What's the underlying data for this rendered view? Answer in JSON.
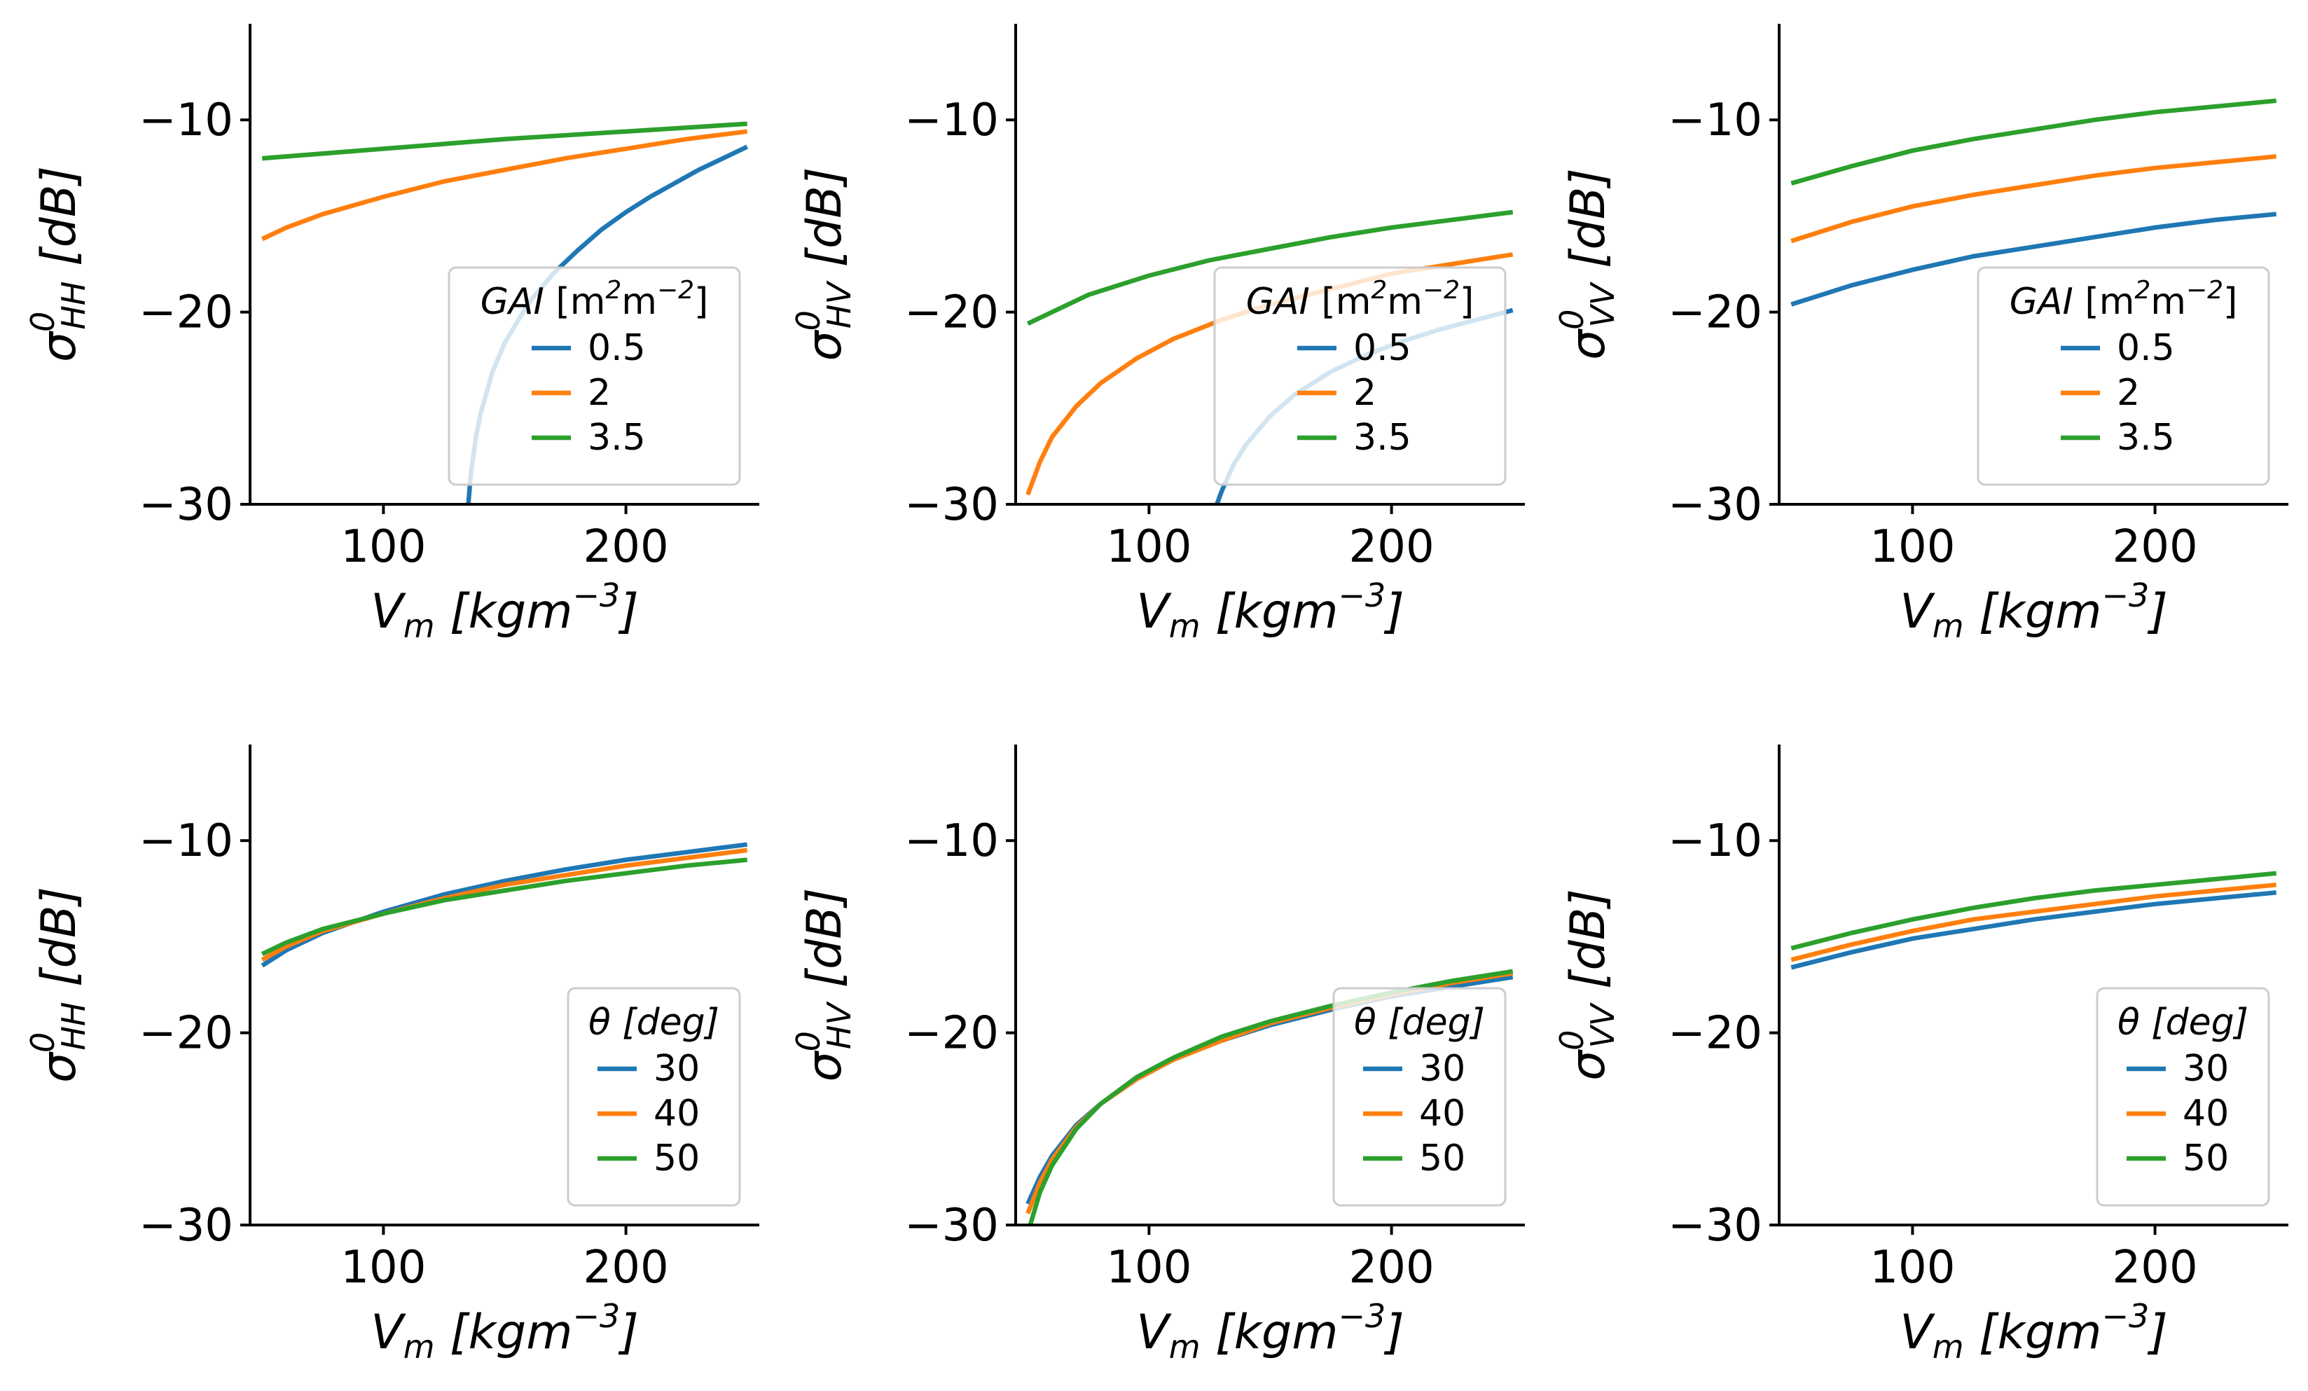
{
  "colors": {
    "blue": "#1f77b4",
    "orange": "#ff7f0e",
    "green": "#2ca02c"
  },
  "chart_data": [
    {
      "type": "line",
      "ylabel": "σ⁰HH [dB]",
      "ylabel_main": "σ",
      "ylabel_sup": "0",
      "ylabel_sub": "HH",
      "ylabel_unit": " [dB]",
      "xlabel": "Vm [kgm−3]",
      "xlabel_main": "V",
      "xlabel_sub": "m",
      "xlabel_unit": " [kgm",
      "xlabel_sup": "−3",
      "xlabel_end": "]",
      "xlim": [
        45,
        255
      ],
      "ylim": [
        -30,
        -5
      ],
      "xticks": [
        100,
        200
      ],
      "xtick_labels": [
        "100",
        "200"
      ],
      "yticks": [
        -10,
        -20,
        -30
      ],
      "ytick_labels": [
        "−10",
        "−20",
        "−30"
      ],
      "legend": {
        "title": "GAI [m²m⁻²]",
        "title_main": "GAI ",
        "title_rest": "[m",
        "title_sup1": "2",
        "title_mid": "m",
        "title_sup2": "−2",
        "title_end": "]",
        "placement": "lower right"
      },
      "series": [
        {
          "name": "0.5",
          "color": "#1f77b4",
          "x": [
            135,
            136,
            138,
            140,
            145,
            150,
            160,
            170,
            180,
            190,
            200,
            210,
            220,
            230,
            240,
            250
          ],
          "y": [
            -30.0,
            -28.5,
            -26.6,
            -25.3,
            -23.1,
            -21.6,
            -19.5,
            -18.0,
            -16.8,
            -15.7,
            -14.8,
            -14.0,
            -13.3,
            -12.6,
            -12.0,
            -11.4
          ]
        },
        {
          "name": "2",
          "color": "#ff7f0e",
          "x": [
            50,
            60,
            75,
            100,
            125,
            150,
            175,
            200,
            225,
            250
          ],
          "y": [
            -16.2,
            -15.6,
            -14.9,
            -14.0,
            -13.2,
            -12.6,
            -12.0,
            -11.5,
            -11.0,
            -10.6
          ]
        },
        {
          "name": "3.5",
          "color": "#2ca02c",
          "x": [
            50,
            100,
            150,
            200,
            250
          ],
          "y": [
            -12.0,
            -11.5,
            -11.0,
            -10.6,
            -10.2
          ]
        }
      ]
    },
    {
      "type": "line",
      "ylabel": "σ⁰HV [dB]",
      "ylabel_main": "σ",
      "ylabel_sup": "0",
      "ylabel_sub": "HV",
      "ylabel_unit": " [dB]",
      "xlabel": "Vm [kgm−3]",
      "xlabel_main": "V",
      "xlabel_sub": "m",
      "xlabel_unit": " [kgm",
      "xlabel_sup": "−3",
      "xlabel_end": "]",
      "xlim": [
        45,
        255
      ],
      "ylim": [
        -30,
        -5
      ],
      "xticks": [
        100,
        200
      ],
      "xtick_labels": [
        "100",
        "200"
      ],
      "yticks": [
        -10,
        -20,
        -30
      ],
      "ytick_labels": [
        "−10",
        "−20",
        "−30"
      ],
      "legend": {
        "title": "GAI [m²m⁻²]",
        "title_main": "GAI ",
        "title_rest": "[m",
        "title_sup1": "2",
        "title_mid": "m",
        "title_sup2": "−2",
        "title_end": "]",
        "placement": "lower right"
      },
      "series": [
        {
          "name": "0.5",
          "color": "#1f77b4",
          "x": [
            128,
            130,
            135,
            140,
            150,
            160,
            175,
            190,
            205,
            220,
            235,
            250
          ],
          "y": [
            -30.0,
            -29.3,
            -27.9,
            -26.9,
            -25.4,
            -24.3,
            -23.1,
            -22.2,
            -21.5,
            -20.9,
            -20.4,
            -19.9
          ]
        },
        {
          "name": "2",
          "color": "#ff7f0e",
          "x": [
            50,
            55,
            60,
            70,
            80,
            95,
            110,
            130,
            150,
            175,
            200,
            225,
            250
          ],
          "y": [
            -29.5,
            -27.8,
            -26.5,
            -24.9,
            -23.7,
            -22.4,
            -21.4,
            -20.4,
            -19.6,
            -18.8,
            -18.0,
            -17.5,
            -17.0
          ]
        },
        {
          "name": "3.5",
          "color": "#2ca02c",
          "x": [
            50,
            75,
            100,
            125,
            150,
            175,
            200,
            225,
            250
          ],
          "y": [
            -20.6,
            -19.1,
            -18.1,
            -17.3,
            -16.7,
            -16.1,
            -15.6,
            -15.2,
            -14.8
          ]
        }
      ]
    },
    {
      "type": "line",
      "ylabel": "σ⁰VV [dB]",
      "ylabel_main": "σ",
      "ylabel_sup": "0",
      "ylabel_sub": "VV",
      "ylabel_unit": " [dB]",
      "xlabel": "Vm [kgm−3]",
      "xlabel_main": "V",
      "xlabel_sub": "m",
      "xlabel_unit": " [kgm",
      "xlabel_sup": "−3",
      "xlabel_end": "]",
      "xlim": [
        45,
        255
      ],
      "ylim": [
        -30,
        -5
      ],
      "xticks": [
        100,
        200
      ],
      "xtick_labels": [
        "100",
        "200"
      ],
      "yticks": [
        -10,
        -20,
        -30
      ],
      "ytick_labels": [
        "−10",
        "−20",
        "−30"
      ],
      "legend": {
        "title": "GAI [m²m⁻²]",
        "title_main": "GAI ",
        "title_rest": "[m",
        "title_sup1": "2",
        "title_mid": "m",
        "title_sup2": "−2",
        "title_end": "]",
        "placement": "lower right"
      },
      "series": [
        {
          "name": "0.5",
          "color": "#1f77b4",
          "x": [
            50,
            75,
            100,
            125,
            150,
            175,
            200,
            225,
            250
          ],
          "y": [
            -19.6,
            -18.6,
            -17.8,
            -17.1,
            -16.6,
            -16.1,
            -15.6,
            -15.2,
            -14.9
          ]
        },
        {
          "name": "2",
          "color": "#ff7f0e",
          "x": [
            50,
            75,
            100,
            125,
            150,
            175,
            200,
            225,
            250
          ],
          "y": [
            -16.3,
            -15.3,
            -14.5,
            -13.9,
            -13.4,
            -12.9,
            -12.5,
            -12.2,
            -11.9
          ]
        },
        {
          "name": "3.5",
          "color": "#2ca02c",
          "x": [
            50,
            75,
            100,
            125,
            150,
            175,
            200,
            225,
            250
          ],
          "y": [
            -13.3,
            -12.4,
            -11.6,
            -11.0,
            -10.5,
            -10.0,
            -9.6,
            -9.3,
            -9.0
          ]
        }
      ]
    },
    {
      "type": "line",
      "ylabel": "σ⁰HH [dB]",
      "ylabel_main": "σ",
      "ylabel_sup": "0",
      "ylabel_sub": "HH",
      "ylabel_unit": " [dB]",
      "xlabel": "Vm [kgm−3]",
      "xlabel_main": "V",
      "xlabel_sub": "m",
      "xlabel_unit": " [kgm",
      "xlabel_sup": "−3",
      "xlabel_end": "]",
      "xlim": [
        45,
        255
      ],
      "ylim": [
        -30,
        -5
      ],
      "xticks": [
        100,
        200
      ],
      "xtick_labels": [
        "100",
        "200"
      ],
      "yticks": [
        -10,
        -20,
        -30
      ],
      "ytick_labels": [
        "−10",
        "−20",
        "−30"
      ],
      "legend": {
        "title": "θ [deg]",
        "title_main": "θ ",
        "title_rest": "[deg]",
        "placement": "lower right"
      },
      "series": [
        {
          "name": "30",
          "color": "#1f77b4",
          "x": [
            50,
            60,
            75,
            100,
            125,
            150,
            175,
            200,
            225,
            250
          ],
          "y": [
            -16.5,
            -15.7,
            -14.8,
            -13.7,
            -12.8,
            -12.1,
            -11.5,
            -11.0,
            -10.6,
            -10.2
          ]
        },
        {
          "name": "40",
          "color": "#ff7f0e",
          "x": [
            50,
            60,
            75,
            100,
            125,
            150,
            175,
            200,
            225,
            250
          ],
          "y": [
            -16.2,
            -15.5,
            -14.7,
            -13.8,
            -13.0,
            -12.3,
            -11.8,
            -11.3,
            -10.9,
            -10.5
          ]
        },
        {
          "name": "50",
          "color": "#2ca02c",
          "x": [
            50,
            60,
            75,
            100,
            125,
            150,
            175,
            200,
            225,
            250
          ],
          "y": [
            -15.9,
            -15.3,
            -14.6,
            -13.8,
            -13.1,
            -12.6,
            -12.1,
            -11.7,
            -11.3,
            -11.0
          ]
        }
      ]
    },
    {
      "type": "line",
      "ylabel": "σ⁰HV [dB]",
      "ylabel_main": "σ",
      "ylabel_sup": "0",
      "ylabel_sub": "HV",
      "ylabel_unit": " [dB]",
      "xlabel": "Vm [kgm−3]",
      "xlabel_main": "V",
      "xlabel_sub": "m",
      "xlabel_unit": " [kgm",
      "xlabel_sup": "−3",
      "xlabel_end": "]",
      "xlim": [
        45,
        255
      ],
      "ylim": [
        -30,
        -5
      ],
      "xticks": [
        100,
        200
      ],
      "xtick_labels": [
        "100",
        "200"
      ],
      "yticks": [
        -10,
        -20,
        -30
      ],
      "ytick_labels": [
        "−10",
        "−20",
        "−30"
      ],
      "legend": {
        "title": "θ [deg]",
        "title_main": "θ ",
        "title_rest": "[deg]",
        "placement": "lower right"
      },
      "series": [
        {
          "name": "30",
          "color": "#1f77b4",
          "x": [
            50,
            55,
            60,
            70,
            80,
            95,
            110,
            130,
            150,
            175,
            200,
            225,
            250
          ],
          "y": [
            -28.9,
            -27.5,
            -26.4,
            -24.8,
            -23.7,
            -22.4,
            -21.4,
            -20.4,
            -19.6,
            -18.8,
            -18.1,
            -17.6,
            -17.1
          ]
        },
        {
          "name": "40",
          "color": "#ff7f0e",
          "x": [
            50,
            55,
            60,
            70,
            80,
            95,
            110,
            130,
            150,
            175,
            200,
            225,
            250
          ],
          "y": [
            -29.4,
            -27.8,
            -26.6,
            -24.9,
            -23.7,
            -22.4,
            -21.4,
            -20.4,
            -19.5,
            -18.7,
            -18.0,
            -17.4,
            -16.9
          ]
        },
        {
          "name": "50",
          "color": "#2ca02c",
          "x": [
            51,
            55,
            60,
            70,
            80,
            95,
            110,
            130,
            150,
            175,
            200,
            225,
            250
          ],
          "y": [
            -30.0,
            -28.3,
            -26.9,
            -25.0,
            -23.7,
            -22.3,
            -21.3,
            -20.2,
            -19.4,
            -18.6,
            -17.9,
            -17.3,
            -16.8
          ]
        }
      ]
    },
    {
      "type": "line",
      "ylabel": "σ⁰VV [dB]",
      "ylabel_main": "σ",
      "ylabel_sup": "0",
      "ylabel_sub": "VV",
      "ylabel_unit": " [dB]",
      "xlabel": "Vm [kgm−3]",
      "xlabel_main": "V",
      "xlabel_sub": "m",
      "xlabel_unit": " [kgm",
      "xlabel_sup": "−3",
      "xlabel_end": "]",
      "xlim": [
        45,
        255
      ],
      "ylim": [
        -30,
        -5
      ],
      "xticks": [
        100,
        200
      ],
      "xtick_labels": [
        "100",
        "200"
      ],
      "yticks": [
        -10,
        -20,
        -30
      ],
      "ytick_labels": [
        "−10",
        "−20",
        "−30"
      ],
      "legend": {
        "title": "θ [deg]",
        "title_main": "θ ",
        "title_rest": "[deg]",
        "placement": "lower right"
      },
      "series": [
        {
          "name": "30",
          "color": "#1f77b4",
          "x": [
            50,
            75,
            100,
            125,
            150,
            175,
            200,
            225,
            250
          ],
          "y": [
            -16.6,
            -15.8,
            -15.1,
            -14.6,
            -14.1,
            -13.7,
            -13.3,
            -13.0,
            -12.7
          ]
        },
        {
          "name": "40",
          "color": "#ff7f0e",
          "x": [
            50,
            75,
            100,
            125,
            150,
            175,
            200,
            225,
            250
          ],
          "y": [
            -16.2,
            -15.4,
            -14.7,
            -14.1,
            -13.7,
            -13.3,
            -12.9,
            -12.6,
            -12.3
          ]
        },
        {
          "name": "50",
          "color": "#2ca02c",
          "x": [
            50,
            75,
            100,
            125,
            150,
            175,
            200,
            225,
            250
          ],
          "y": [
            -15.6,
            -14.8,
            -14.1,
            -13.5,
            -13.0,
            -12.6,
            -12.3,
            -12.0,
            -11.7
          ]
        }
      ]
    }
  ]
}
